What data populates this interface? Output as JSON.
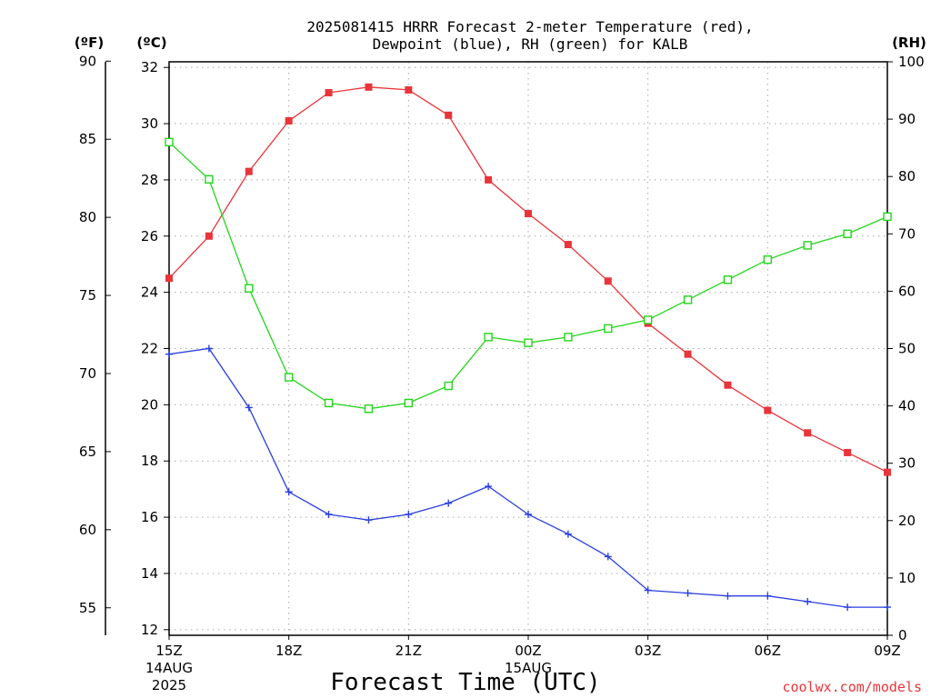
{
  "title_line1": "2025081415 HRRR Forecast 2-meter Temperature (red),",
  "title_line2": "Dewpoint (blue), RH (green) for KALB",
  "unit_f": "(ºF)",
  "unit_c": "(ºC)",
  "unit_rh": "(RH)",
  "xlabel": "Forecast Time (UTC)",
  "credit": "coolwx.com/models",
  "colors": {
    "temperature": "#e8343a",
    "dewpoint": "#2a3fe0",
    "rh": "#22d61a",
    "grid": "#a8a8a8"
  },
  "chart_data": {
    "type": "line",
    "x": [
      "15Z",
      "16Z",
      "17Z",
      "18Z",
      "19Z",
      "20Z",
      "21Z",
      "22Z",
      "23Z",
      "00Z",
      "01Z",
      "02Z",
      "03Z",
      "04Z",
      "05Z",
      "06Z",
      "07Z",
      "08Z",
      "09Z"
    ],
    "xticks": [
      {
        "label": "15Z",
        "index": 0,
        "date1": "14AUG",
        "date2": "2025"
      },
      {
        "label": "18Z",
        "index": 3
      },
      {
        "label": "21Z",
        "index": 6
      },
      {
        "label": "00Z",
        "index": 9,
        "date1": "15AUG"
      },
      {
        "label": "03Z",
        "index": 12
      },
      {
        "label": "06Z",
        "index": 15
      },
      {
        "label": "09Z",
        "index": 18
      }
    ],
    "series": [
      {
        "key": "temperature",
        "axis": "celsius",
        "marker": "filled-square",
        "values": [
          24.5,
          26.0,
          28.3,
          30.1,
          31.1,
          31.3,
          31.2,
          30.3,
          28.0,
          26.8,
          25.7,
          24.4,
          22.9,
          21.8,
          20.7,
          19.8,
          19.0,
          18.3,
          17.6
        ]
      },
      {
        "key": "dewpoint",
        "axis": "celsius",
        "marker": "plus",
        "values": [
          21.8,
          22.0,
          19.9,
          16.9,
          16.1,
          15.9,
          16.1,
          16.5,
          17.1,
          16.1,
          15.4,
          14.6,
          13.4,
          13.3,
          13.2,
          13.2,
          13.0,
          12.8,
          12.8
        ]
      },
      {
        "key": "rh",
        "axis": "rh",
        "marker": "open-square",
        "values": [
          86,
          79.5,
          60.5,
          45,
          40.5,
          39.5,
          40.5,
          43.5,
          52,
          51,
          52,
          53.5,
          55,
          58.5,
          62,
          65.5,
          68,
          70,
          73
        ]
      }
    ],
    "celsius_axis": {
      "ticks": [
        12,
        14,
        16,
        18,
        20,
        22,
        24,
        26,
        28,
        30,
        32
      ],
      "ylim": [
        11.8,
        32.2
      ]
    },
    "fahrenheit_axis": {
      "ticks": [
        55,
        60,
        65,
        70,
        75,
        80,
        85,
        90
      ]
    },
    "rh_axis": {
      "ticks": [
        0,
        10,
        20,
        30,
        40,
        50,
        60,
        70,
        80,
        90,
        100
      ],
      "ylim": [
        0,
        100
      ]
    },
    "grid": true
  }
}
